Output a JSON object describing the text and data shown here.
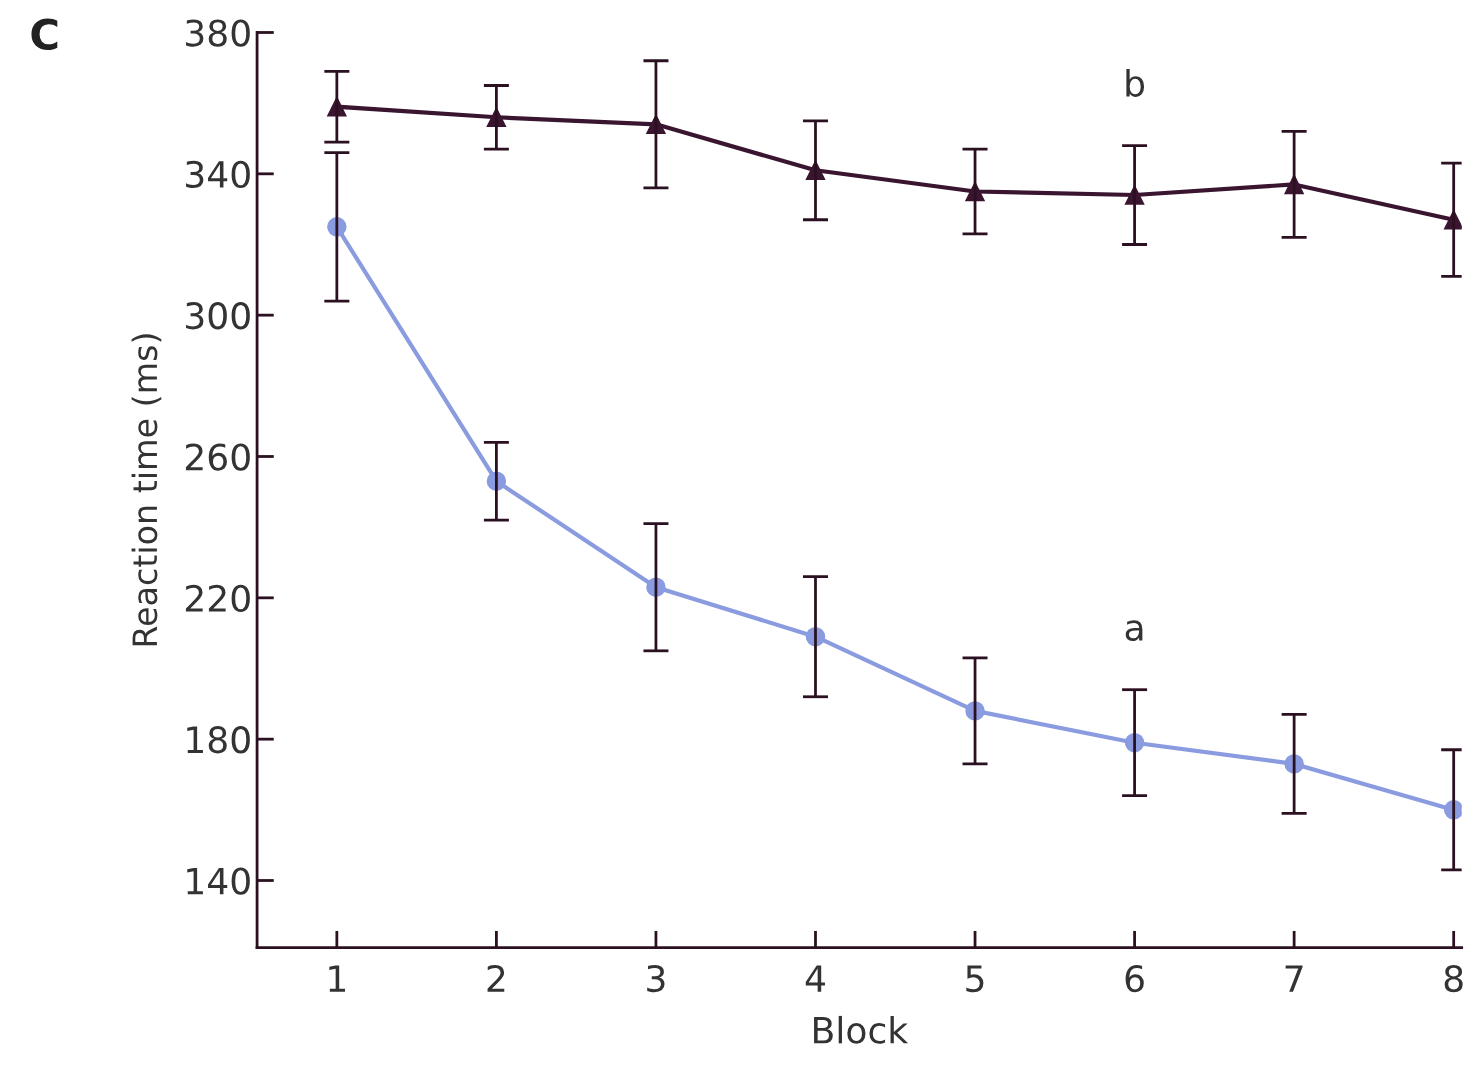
{
  "chart_data": {
    "type": "line",
    "xlabel": "Block",
    "ylabel": "Reaction time (ms)",
    "x": [
      1,
      2,
      3,
      4,
      5,
      6,
      7,
      8
    ],
    "xlim": [
      0.5,
      8.05
    ],
    "xticks": [
      1,
      2,
      3,
      4,
      5,
      6,
      7,
      8
    ],
    "ylim": [
      121,
      380
    ],
    "yticks": [
      140,
      180,
      220,
      260,
      300,
      340,
      380
    ],
    "grid": false,
    "legend": false,
    "line_style": "solid",
    "series": [
      {
        "name": "b",
        "color": "#3a1530",
        "marker": "triangle",
        "values": [
          359,
          356,
          354,
          341,
          335,
          334,
          337,
          327
        ],
        "errors": [
          10,
          9,
          18,
          14,
          12,
          14,
          15,
          16
        ]
      },
      {
        "name": "a",
        "color": "#8a9be0",
        "marker": "circle",
        "values": [
          325,
          253,
          223,
          209,
          188,
          179,
          173,
          160
        ],
        "errors": [
          21,
          11,
          18,
          17,
          15,
          15,
          14,
          17
        ]
      }
    ],
    "annotations": [
      "C"
    ]
  }
}
